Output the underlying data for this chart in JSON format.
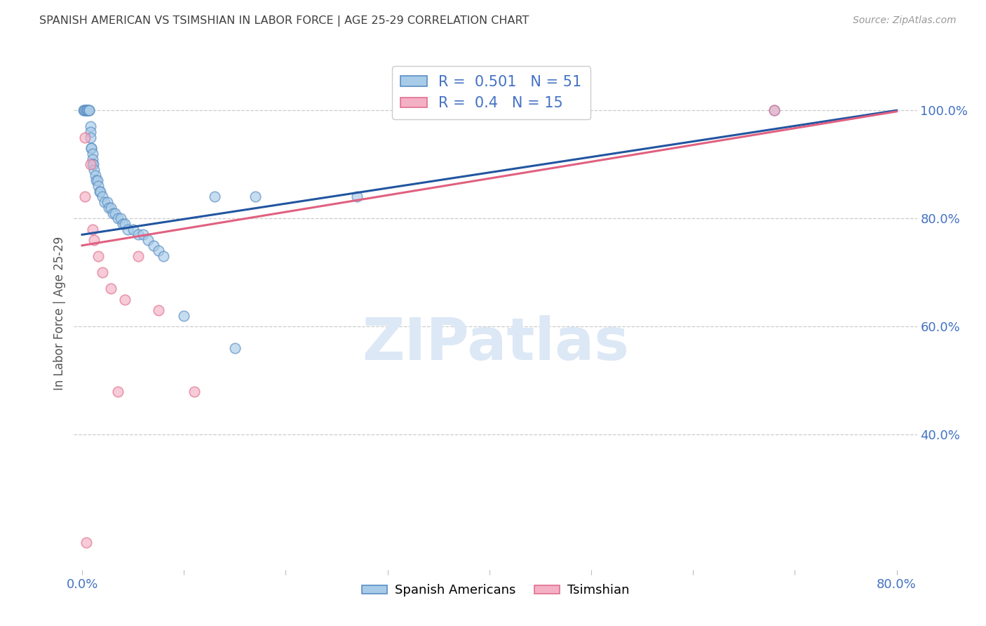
{
  "title": "SPANISH AMERICAN VS TSIMSHIAN IN LABOR FORCE | AGE 25-29 CORRELATION CHART",
  "source": "Source: ZipAtlas.com",
  "ylabel": "In Labor Force | Age 25-29",
  "blue_R": 0.501,
  "blue_N": 51,
  "pink_R": 0.4,
  "pink_N": 15,
  "blue_fill_color": "#a8cce8",
  "pink_fill_color": "#f4b0c4",
  "blue_edge_color": "#5b8ec4",
  "pink_edge_color": "#e07090",
  "blue_line_color": "#2255a0",
  "pink_line_color": "#e06080",
  "axis_label_color": "#4472c4",
  "title_color": "#404040",
  "source_color": "#999999",
  "legend_R_color": "#4472c4",
  "watermark_color": "#dce8f5",
  "grid_color": "#cccccc",
  "xlim_min": -0.008,
  "xlim_max": 0.82,
  "ylim_min": 0.15,
  "ylim_max": 1.1,
  "xtick_vals": [
    0.0,
    0.1,
    0.2,
    0.3,
    0.4,
    0.5,
    0.6,
    0.7,
    0.8
  ],
  "ytick_vals": [
    1.0,
    0.8,
    0.6,
    0.4
  ],
  "ytick_labels": [
    "100.0%",
    "80.0%",
    "60.0%",
    "40.0%"
  ],
  "blue_trend_x": [
    0.0,
    0.8
  ],
  "blue_trend_y": [
    0.77,
    1.0
  ],
  "pink_trend_x": [
    0.0,
    0.8
  ],
  "pink_trend_y": [
    0.75,
    0.998
  ],
  "blue_scatter_x": [
    0.001,
    0.002,
    0.003,
    0.004,
    0.005,
    0.005,
    0.005,
    0.006,
    0.007,
    0.007,
    0.008,
    0.008,
    0.008,
    0.009,
    0.009,
    0.01,
    0.01,
    0.01,
    0.011,
    0.012,
    0.013,
    0.014,
    0.015,
    0.016,
    0.017,
    0.018,
    0.02,
    0.022,
    0.025,
    0.026,
    0.028,
    0.03,
    0.032,
    0.035,
    0.038,
    0.04,
    0.042,
    0.045,
    0.05,
    0.055,
    0.06,
    0.065,
    0.07,
    0.075,
    0.08,
    0.1,
    0.13,
    0.15,
    0.17,
    0.27,
    0.68
  ],
  "blue_scatter_y": [
    1.0,
    1.0,
    1.0,
    1.0,
    1.0,
    1.0,
    1.0,
    1.0,
    1.0,
    1.0,
    0.97,
    0.96,
    0.95,
    0.93,
    0.93,
    0.92,
    0.91,
    0.9,
    0.9,
    0.89,
    0.88,
    0.87,
    0.87,
    0.86,
    0.85,
    0.85,
    0.84,
    0.83,
    0.83,
    0.82,
    0.82,
    0.81,
    0.81,
    0.8,
    0.8,
    0.79,
    0.79,
    0.78,
    0.78,
    0.77,
    0.77,
    0.76,
    0.75,
    0.74,
    0.73,
    0.62,
    0.84,
    0.56,
    0.84,
    0.84,
    1.0
  ],
  "pink_scatter_x": [
    0.003,
    0.003,
    0.004,
    0.008,
    0.01,
    0.012,
    0.016,
    0.02,
    0.028,
    0.035,
    0.042,
    0.055,
    0.075,
    0.11,
    0.68
  ],
  "pink_scatter_y": [
    0.95,
    0.84,
    0.2,
    0.9,
    0.78,
    0.76,
    0.73,
    0.7,
    0.67,
    0.48,
    0.65,
    0.73,
    0.63,
    0.48,
    1.0
  ],
  "marker_size": 110,
  "marker_linewidth": 1.2,
  "marker_alpha": 0.65
}
